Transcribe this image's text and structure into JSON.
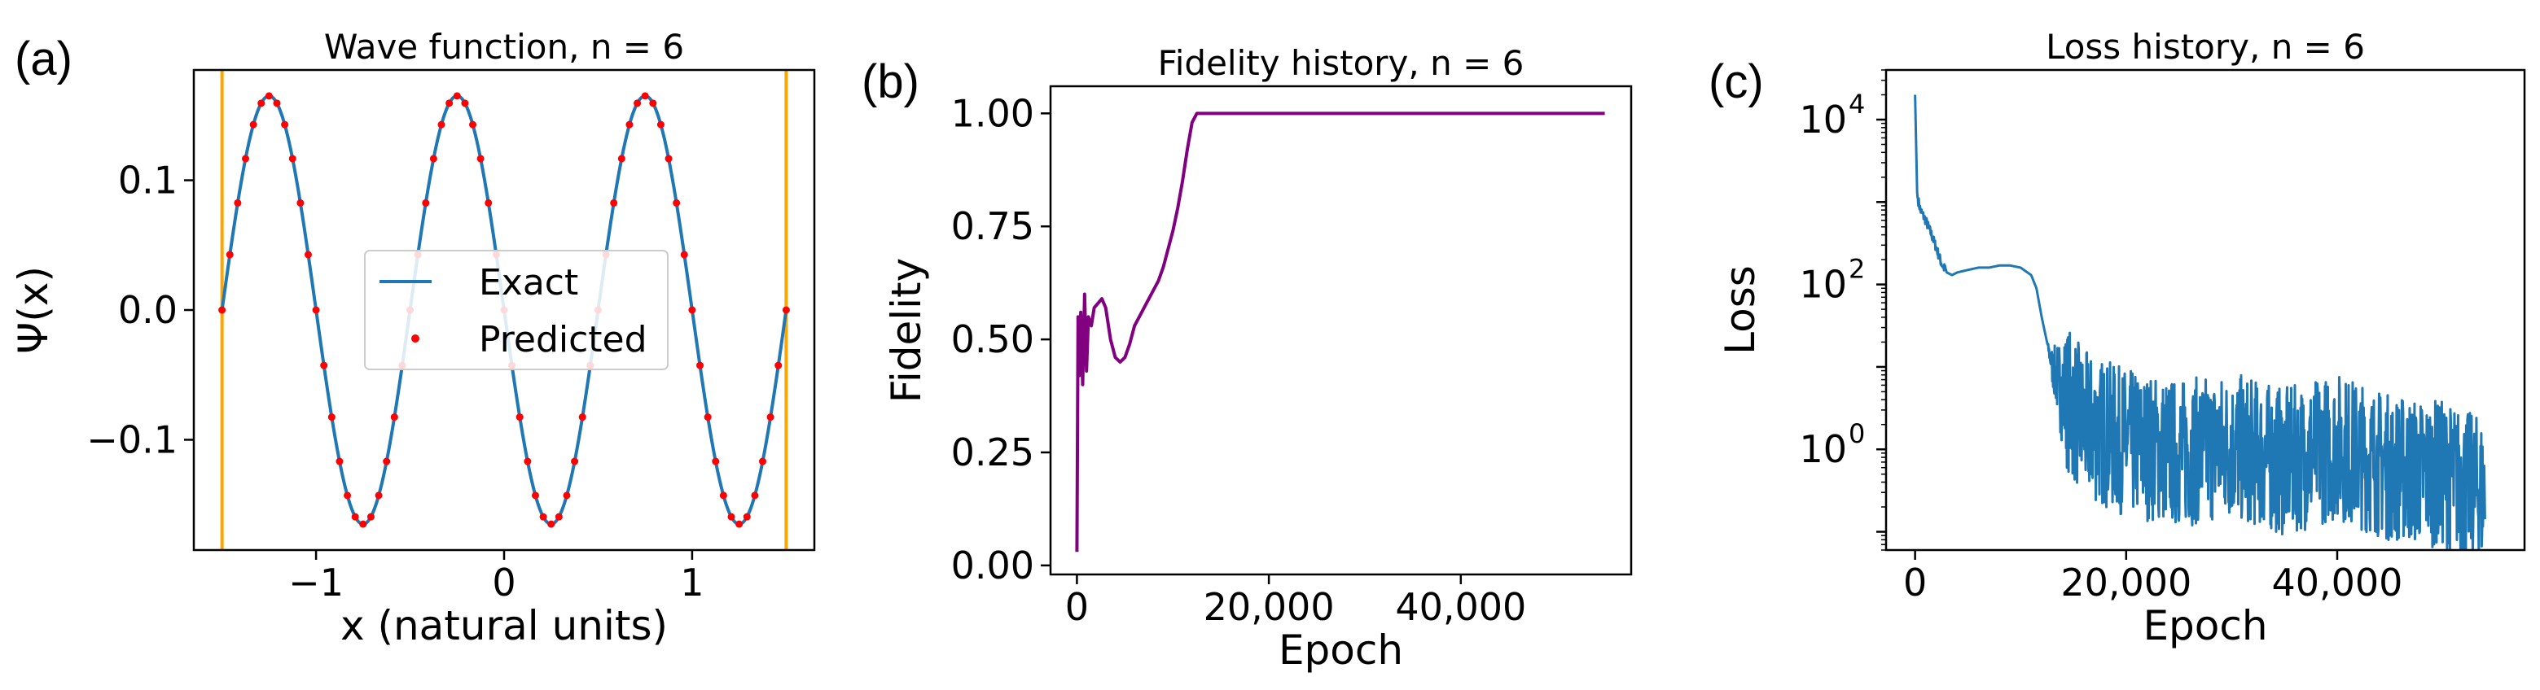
{
  "panels": [
    {
      "label": "(a)",
      "chart_data": {
        "type": "line",
        "title": "Wave function, n = 6",
        "xlabel": "x (natural units)",
        "ylabel": "Ψ(x)",
        "xlim": [
          -1.65,
          1.65
        ],
        "ylim": [
          -0.185,
          0.185
        ],
        "xticks": [
          -1,
          0,
          1
        ],
        "xtick_labels": [
          "−1",
          "0",
          "1"
        ],
        "yticks": [
          -0.1,
          0.0,
          0.1
        ],
        "ytick_labels": [
          "−0.1",
          "0.0",
          "0.1"
        ],
        "grid": false,
        "legend_position": "center",
        "boundary_lines": {
          "x": [
            -1.5,
            1.5
          ],
          "color": "#ffa500"
        },
        "exact": {
          "name": "Exact",
          "color": "#1f77b4",
          "function": "sqrt(2/3)*sin(2*pi*(x+1.5))",
          "x_range": [
            -1.5,
            1.5
          ]
        },
        "predicted": {
          "name": "Predicted",
          "color": "#ff0000",
          "x_range": [
            -1.5,
            1.5
          ],
          "n_points": 73
        }
      }
    },
    {
      "label": "(b)",
      "chart_data": {
        "type": "line",
        "title": "Fidelity history, n = 6",
        "xlabel": "Epoch",
        "ylabel": "Fidelity",
        "xlim": [
          -2750,
          57750
        ],
        "ylim": [
          -0.02,
          1.06
        ],
        "xticks": [
          0,
          20000,
          40000
        ],
        "xtick_labels": [
          "0",
          "20,000",
          "40,000"
        ],
        "yticks": [
          0.0,
          0.25,
          0.5,
          0.75,
          1.0
        ],
        "ytick_labels": [
          "0.00",
          "0.25",
          "0.50",
          "0.75",
          "1.00"
        ],
        "grid": false,
        "series": [
          {
            "color": "#800080",
            "x": [
              0,
              120,
              250,
              400,
              600,
              800,
              1000,
              1200,
              1500,
              1800,
              2200,
              2600,
              3000,
              3500,
              4000,
              4500,
              5000,
              5500,
              6000,
              6500,
              7000,
              7500,
              8000,
              8500,
              9000,
              9500,
              10000,
              10500,
              11000,
              11500,
              12000,
              12500,
              13000,
              20000,
              30000,
              40000,
              50000,
              55000
            ],
            "y": [
              0.03,
              0.55,
              0.42,
              0.56,
              0.4,
              0.6,
              0.43,
              0.55,
              0.53,
              0.57,
              0.58,
              0.59,
              0.57,
              0.5,
              0.46,
              0.45,
              0.46,
              0.49,
              0.53,
              0.55,
              0.57,
              0.59,
              0.61,
              0.63,
              0.66,
              0.7,
              0.74,
              0.79,
              0.85,
              0.92,
              0.98,
              1.0,
              1.0,
              1.0,
              1.0,
              1.0,
              1.0,
              1.0
            ]
          }
        ]
      }
    },
    {
      "label": "(c)",
      "chart_data": {
        "type": "line",
        "title": "Loss history, n = 6",
        "xlabel": "Epoch",
        "ylabel": "Loss",
        "yscale": "log",
        "xlim": [
          -2750,
          57750
        ],
        "ylim": [
          0.06,
          40000
        ],
        "xticks": [
          0,
          20000,
          40000
        ],
        "xtick_labels": [
          "0",
          "20,000",
          "40,000"
        ],
        "yticks": [
          1,
          100,
          10000
        ],
        "ytick_labels": [
          "10",
          "10",
          "10"
        ],
        "ytick_exponents": [
          "0",
          "2",
          "4"
        ],
        "grid": false,
        "series": [
          {
            "color": "#1f77b4",
            "x": [
              0,
              200,
              500,
              1000,
              1500,
              2000,
              2500,
              3000,
              3500,
              4000,
              5000,
              6000,
              7000,
              8000,
              9000,
              10000,
              11000,
              11500,
              12000,
              12500,
              13000,
              14000,
              16000,
              20000,
              25000,
              30000,
              35000,
              40000,
              45000,
              50000,
              54000
            ],
            "y": [
              20000,
              1200,
              800,
              600,
              420,
              280,
              180,
              140,
              130,
              140,
              150,
              160,
              160,
              170,
              170,
              160,
              130,
              90,
              40,
              20,
              10,
              5,
              2,
              1.2,
              0.9,
              1.1,
              0.7,
              1.1,
              0.6,
              0.5,
              0.3
            ],
            "noise_band": "fluctuations of roughly one decade above and below the trend after epoch 12,000"
          }
        ]
      }
    }
  ]
}
